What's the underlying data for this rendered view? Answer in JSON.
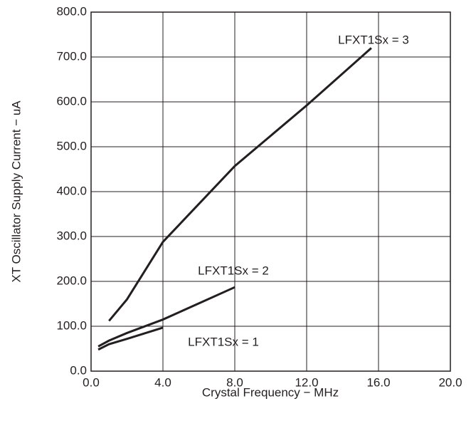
{
  "chart_data": {
    "type": "line",
    "x_label": "Crystal Frequency − MHz",
    "y_label": "XT Oscillator Supply Current  − uA",
    "series": [
      {
        "name": "LFXT1Sx = 3",
        "color": "#231f20",
        "x": [
          1,
          2,
          4,
          8,
          12,
          15.6
        ],
        "values": [
          112,
          160,
          288,
          457,
          592,
          720
        ]
      },
      {
        "name": "LFXT1Sx = 2",
        "color": "#231f20",
        "x": [
          0.4,
          1,
          2,
          4,
          8
        ],
        "values": [
          55,
          68,
          85,
          115,
          187
        ]
      },
      {
        "name": "LFXT1Sx = 1",
        "color": "#231f20",
        "x": [
          0.4,
          1,
          2,
          4
        ],
        "values": [
          48,
          60,
          72,
          97
        ]
      }
    ],
    "xlim": [
      0,
      20
    ],
    "xticks": [
      {
        "value": 0,
        "label": "0.0"
      },
      {
        "value": 4,
        "label": "4.0"
      },
      {
        "value": 8,
        "label": "8.0"
      },
      {
        "value": 12,
        "label": "12.0"
      },
      {
        "value": 16,
        "label": "16.0"
      },
      {
        "value": 20,
        "label": "20.0"
      }
    ],
    "ylim": [
      0,
      800
    ],
    "yticks": [
      {
        "value": 0,
        "label": "0.0"
      },
      {
        "value": 100,
        "label": "100.0"
      },
      {
        "value": 200,
        "label": "200.0"
      },
      {
        "value": 300,
        "label": "300.0"
      },
      {
        "value": 400,
        "label": "400.0"
      },
      {
        "value": 500,
        "label": "500.0"
      },
      {
        "value": 600,
        "label": "600.0"
      },
      {
        "value": 700,
        "label": "700.0"
      },
      {
        "value": 800,
        "label": "800.0"
      }
    ],
    "grid": true
  }
}
